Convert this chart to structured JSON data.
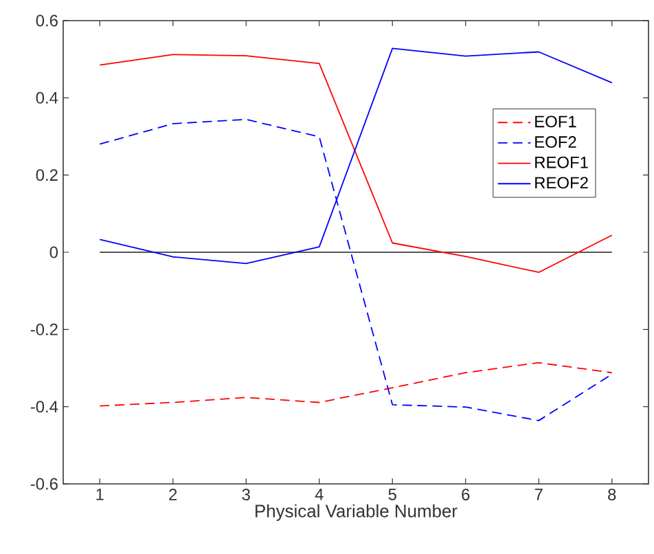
{
  "chart_data": {
    "type": "line",
    "xlabel": "Physical Variable Number",
    "x": [
      1,
      2,
      3,
      4,
      5,
      6,
      7,
      8
    ],
    "series": [
      {
        "name": "EOF1",
        "color": "#ff0000",
        "line_style": "dashed",
        "values": [
          -0.398,
          -0.389,
          -0.376,
          -0.389,
          -0.351,
          -0.312,
          -0.286,
          -0.312
        ]
      },
      {
        "name": "EOF2",
        "color": "#0000ff",
        "line_style": "dashed",
        "values": [
          0.28,
          0.333,
          0.344,
          0.299,
          -0.395,
          -0.401,
          -0.436,
          -0.316
        ]
      },
      {
        "name": "REOF1",
        "color": "#ff0000",
        "line_style": "solid",
        "values": [
          0.485,
          0.512,
          0.509,
          0.489,
          0.024,
          -0.011,
          -0.052,
          0.044
        ]
      },
      {
        "name": "REOF2",
        "color": "#0000ff",
        "line_style": "solid",
        "values": [
          0.033,
          -0.012,
          -0.029,
          0.014,
          0.528,
          0.508,
          0.519,
          0.439
        ]
      }
    ],
    "ref_lines": [
      {
        "axis": "y",
        "value": 0,
        "color": "#555555"
      }
    ],
    "xlim": [
      0.5,
      8.5
    ],
    "ylim": [
      -0.6,
      0.6
    ],
    "xticks": [
      1,
      2,
      3,
      4,
      5,
      6,
      7,
      8
    ],
    "yticks": [
      -0.6,
      -0.4,
      -0.2,
      0,
      0.2,
      0.4,
      0.6
    ],
    "legend": "top right",
    "grid": false,
    "marker": "none"
  }
}
